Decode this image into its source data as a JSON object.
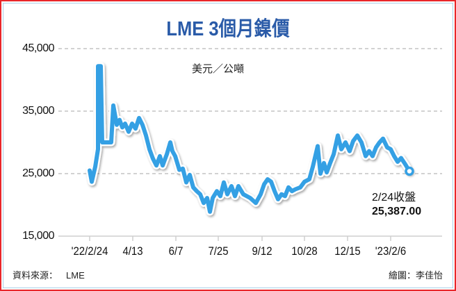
{
  "chart_data": {
    "type": "line",
    "title": "LME 3個月鎳價",
    "unit_label": "美元／公噸",
    "xlabel": "",
    "ylabel": "美元／公噸",
    "ylim": [
      15000,
      45000
    ],
    "yticks": [
      "45,000",
      "35,000",
      "25,000",
      "15,000"
    ],
    "ytick_values": [
      45000,
      35000,
      25000,
      15000
    ],
    "xticks": [
      "'22/2/24",
      "4/13",
      "6/7",
      "7/25",
      "9/12",
      "10/28",
      "12/15",
      "'23/2/6"
    ],
    "grid": "horizontal dashed",
    "series": [
      {
        "name": "LME 3個月鎳價",
        "color": "#34a0e4",
        "points": [
          [
            129,
            25500
          ],
          [
            132,
            23700
          ],
          [
            137,
            26100
          ],
          [
            141,
            28900
          ],
          [
            141,
            42200
          ],
          [
            145,
            42200
          ],
          [
            147,
            30000
          ],
          [
            160,
            30000
          ],
          [
            163,
            35900
          ],
          [
            168,
            32800
          ],
          [
            172,
            33600
          ],
          [
            176,
            32400
          ],
          [
            180,
            33000
          ],
          [
            185,
            31700
          ],
          [
            190,
            33000
          ],
          [
            195,
            32200
          ],
          [
            200,
            33900
          ],
          [
            205,
            32800
          ],
          [
            210,
            31100
          ],
          [
            215,
            28900
          ],
          [
            220,
            27400
          ],
          [
            225,
            26300
          ],
          [
            230,
            27800
          ],
          [
            234,
            26300
          ],
          [
            240,
            28100
          ],
          [
            245,
            30000
          ],
          [
            248,
            28600
          ],
          [
            252,
            27800
          ],
          [
            258,
            25600
          ],
          [
            263,
            25800
          ],
          [
            268,
            23600
          ],
          [
            273,
            24800
          ],
          [
            278,
            22800
          ],
          [
            283,
            22200
          ],
          [
            288,
            21700
          ],
          [
            293,
            20300
          ],
          [
            298,
            21100
          ],
          [
            302,
            18900
          ],
          [
            306,
            21100
          ],
          [
            312,
            22200
          ],
          [
            317,
            21400
          ],
          [
            322,
            23600
          ],
          [
            327,
            21700
          ],
          [
            333,
            23000
          ],
          [
            338,
            21400
          ],
          [
            343,
            23000
          ],
          [
            350,
            21700
          ],
          [
            360,
            21100
          ],
          [
            368,
            20300
          ],
          [
            375,
            21700
          ],
          [
            380,
            23300
          ],
          [
            385,
            24100
          ],
          [
            390,
            23700
          ],
          [
            395,
            22200
          ],
          [
            400,
            20900
          ],
          [
            405,
            21700
          ],
          [
            410,
            21400
          ],
          [
            415,
            22800
          ],
          [
            420,
            22200
          ],
          [
            425,
            22500
          ],
          [
            432,
            22800
          ],
          [
            438,
            23700
          ],
          [
            445,
            24100
          ],
          [
            450,
            26100
          ],
          [
            457,
            29400
          ],
          [
            461,
            25000
          ],
          [
            466,
            26700
          ],
          [
            470,
            25200
          ],
          [
            475,
            26700
          ],
          [
            480,
            28100
          ],
          [
            486,
            31100
          ],
          [
            491,
            28900
          ],
          [
            497,
            30000
          ],
          [
            503,
            28600
          ],
          [
            508,
            30200
          ],
          [
            514,
            31100
          ],
          [
            520,
            30000
          ],
          [
            526,
            27800
          ],
          [
            531,
            28600
          ],
          [
            536,
            27800
          ],
          [
            541,
            29200
          ],
          [
            546,
            30000
          ],
          [
            551,
            30600
          ],
          [
            557,
            29200
          ],
          [
            562,
            28900
          ],
          [
            567,
            27800
          ],
          [
            572,
            26900
          ],
          [
            577,
            27500
          ],
          [
            583,
            26500
          ],
          [
            589,
            25387
          ]
        ]
      }
    ],
    "annotations": [
      {
        "label": "2/24收盤",
        "value": "25,387.00"
      }
    ]
  },
  "header": {
    "title": "LME 3個月鎳價",
    "unit": "美元／公噸"
  },
  "footer": {
    "source_label": "資料來源：",
    "source_value": "LME",
    "credit": "繪圖：李佳怡"
  },
  "annotation": {
    "date_label": "2/24收盤",
    "close_value": "25,387.00"
  },
  "colors": {
    "title": "#2a5ba8",
    "line": "#34a0e4",
    "frame": "#e8262a",
    "inner_border": "#a9cdea",
    "grid": "#b8b8b8"
  }
}
